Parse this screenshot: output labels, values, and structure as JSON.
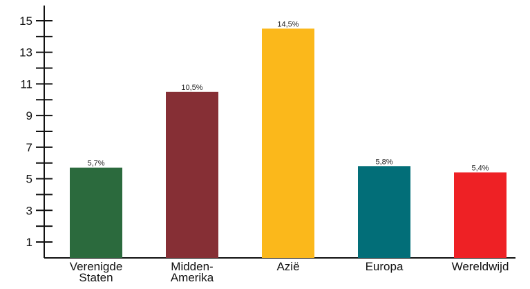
{
  "chart_data": {
    "type": "bar",
    "categories": [
      "Verenigde Staten",
      "Midden-Amerika",
      "Azië",
      "Europa",
      "Wereldwijd"
    ],
    "category_lines": [
      [
        "Verenigde",
        "Staten"
      ],
      [
        "Midden-",
        "Amerika"
      ],
      [
        "Azië"
      ],
      [
        "Europa"
      ],
      [
        "Wereldwijd"
      ]
    ],
    "values": [
      5.7,
      10.5,
      14.5,
      5.8,
      5.4
    ],
    "data_labels": [
      "5,7%",
      "10,5%",
      "14,5%",
      "5,8%",
      "5,4%"
    ],
    "colors": [
      "#2b6a3d",
      "#862f35",
      "#fbb81b",
      "#026e78",
      "#ee2125"
    ],
    "y_ticks": [
      1,
      3,
      5,
      7,
      9,
      11,
      13,
      15
    ],
    "y_minor_ticks": [
      2,
      4,
      6,
      8,
      10,
      12,
      14
    ],
    "ylim": [
      0,
      16
    ],
    "title": "",
    "xlabel": "",
    "ylabel": "",
    "grid": false,
    "legend": "none"
  }
}
